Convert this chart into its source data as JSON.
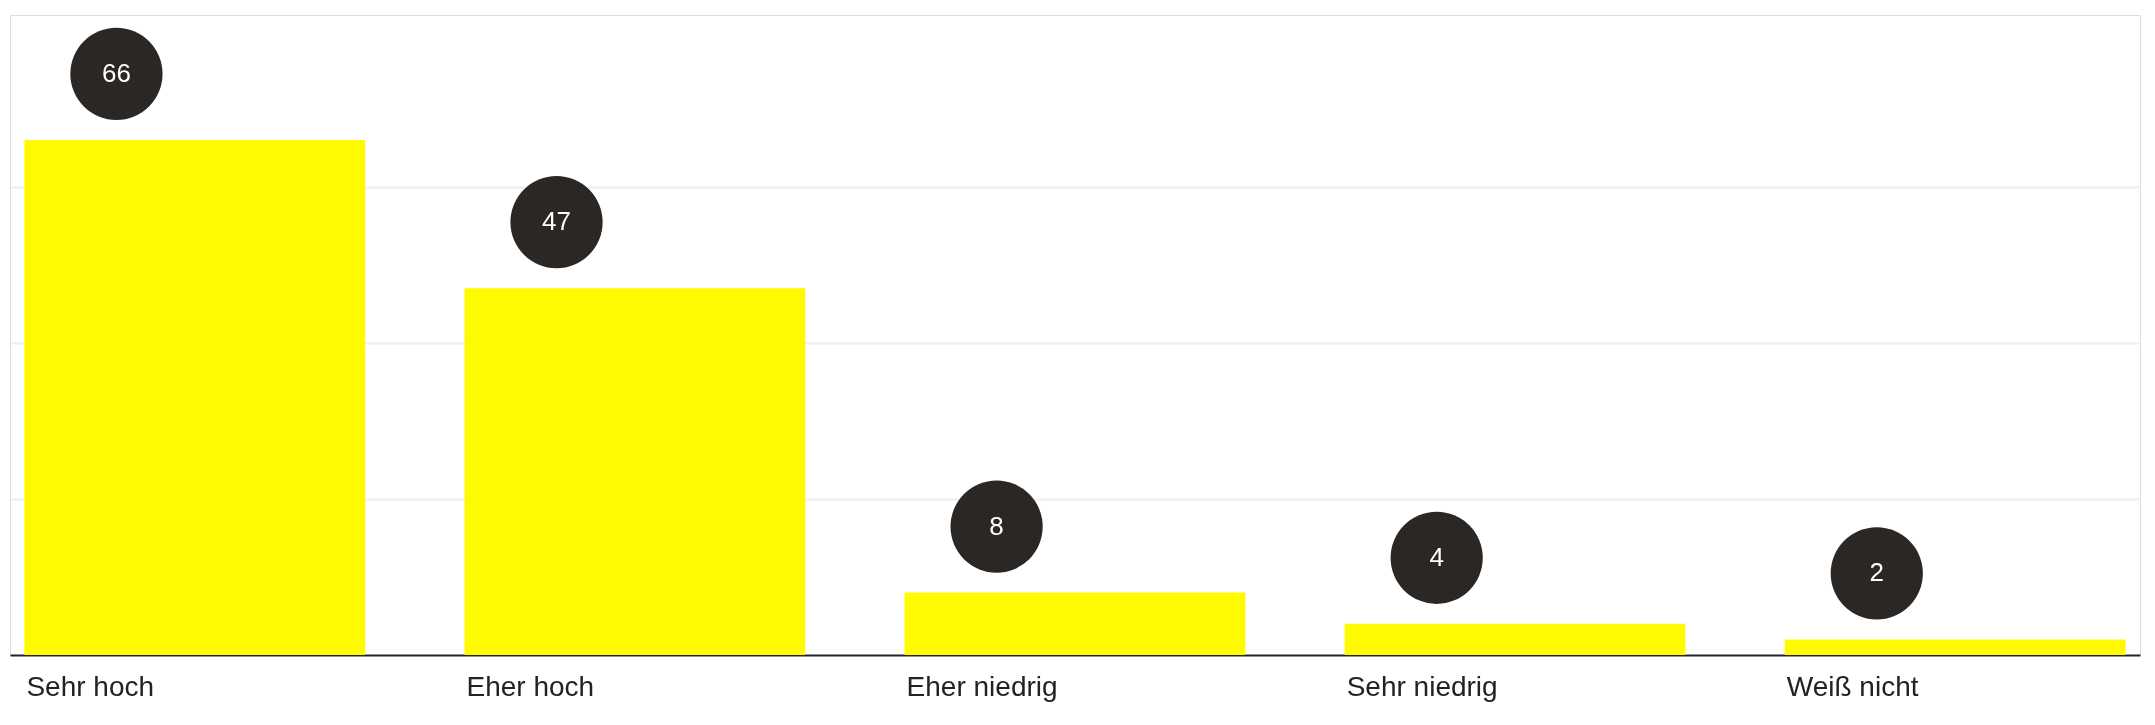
{
  "chart_data": {
    "type": "bar",
    "categories": [
      "Sehr hoch",
      "Eher hoch",
      "Eher niedrig",
      "Sehr niedrig",
      "Weiß nicht"
    ],
    "values": [
      66,
      47,
      8,
      4,
      2
    ],
    "color": "#fffa00",
    "data_labels": true,
    "grid": "y",
    "ylim": [
      0,
      82
    ],
    "yticks": [
      {
        "value": 20,
        "label": null
      },
      {
        "value": 40,
        "label": null
      },
      {
        "value": 60,
        "label": null
      }
    ],
    "tick_labels": "x"
  }
}
